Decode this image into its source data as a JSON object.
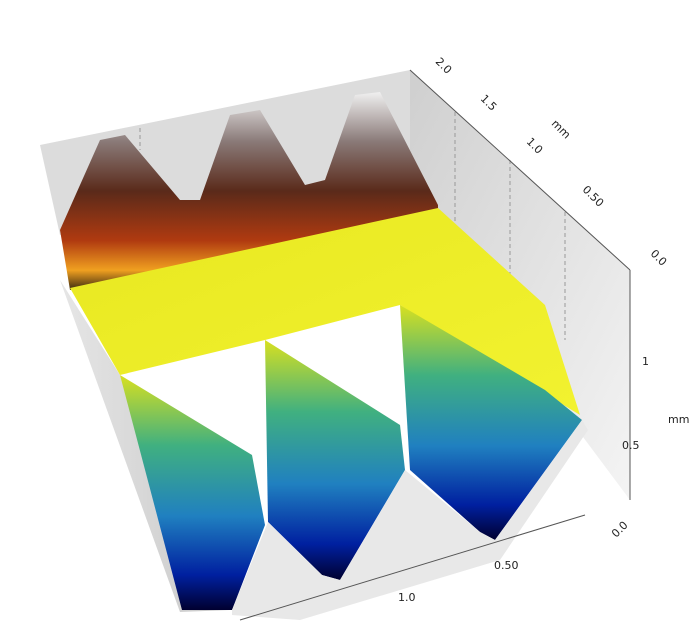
{
  "axes": {
    "depth": {
      "labels": [
        "2.0",
        "1.5",
        "1.0",
        "0.50",
        "0.0"
      ],
      "unit": "mm"
    },
    "height": {
      "labels": [
        "1",
        "0.5",
        "0.0"
      ],
      "unit": "mm"
    },
    "width": {
      "labels": [
        "0.50",
        "1.0"
      ]
    }
  }
}
